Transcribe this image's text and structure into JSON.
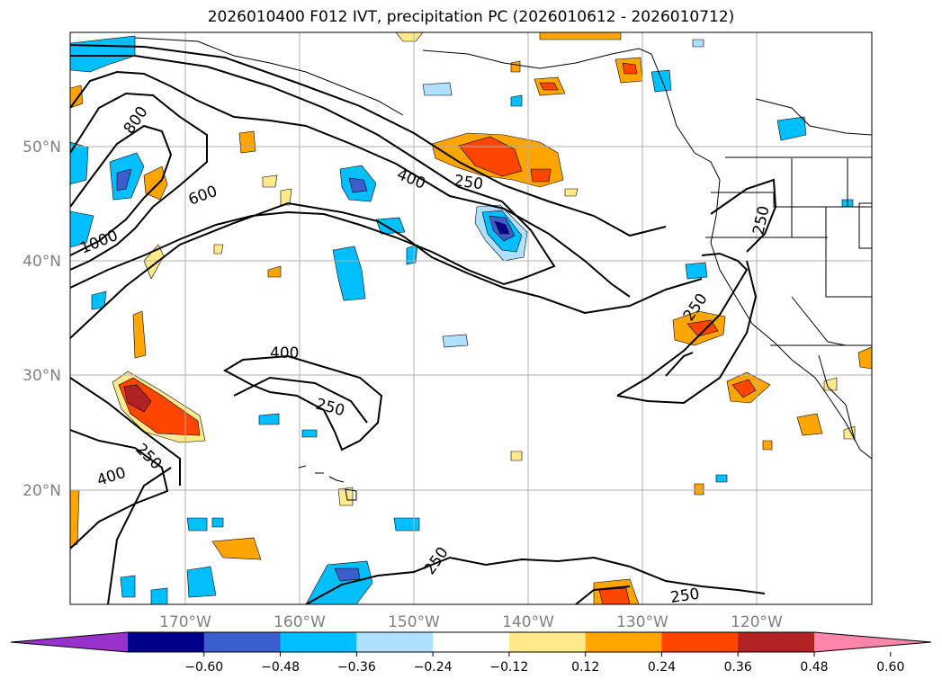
{
  "title": "2026010400 F012 IVT, precipitation PC (2026010612 - 2026010712)",
  "map": {
    "lon_labels": [
      "170°W",
      "160°W",
      "150°W",
      "140°W",
      "130°W",
      "120°W"
    ],
    "lat_labels": [
      "50°N",
      "40°N",
      "30°N",
      "20°N"
    ],
    "gridlines": true
  },
  "contour_labels": [
    "800",
    "600",
    "1000",
    "400",
    "250",
    "250",
    "250",
    "400",
    "250",
    "400",
    "250",
    "250",
    "250"
  ],
  "colorbar": {
    "ticks": [
      "−0.60",
      "−0.48",
      "−0.36",
      "−0.24",
      "−0.12",
      "0.12",
      "0.24",
      "0.36",
      "0.48",
      "0.60"
    ],
    "colors": [
      "#9932cc",
      "#00008b",
      "#3a5fcd",
      "#00bfff",
      "#b0e0ff",
      "#ffffff",
      "#ffe98a",
      "#ffa500",
      "#ff4500",
      "#b22222",
      "#ff85aa"
    ],
    "extend": "both"
  }
}
